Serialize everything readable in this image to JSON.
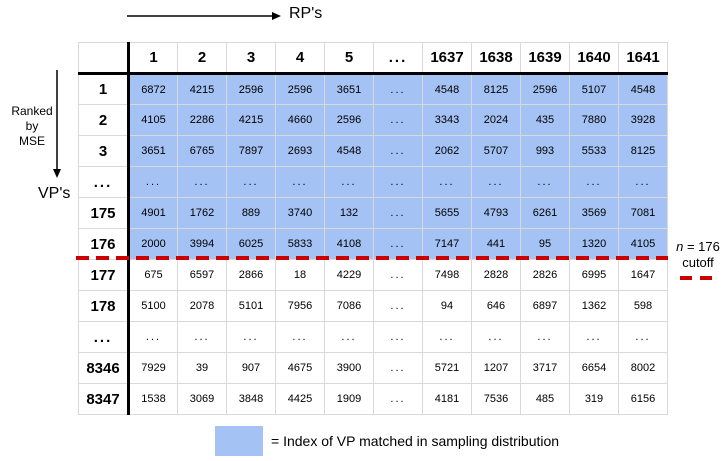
{
  "colors": {
    "highlight": "#a4c2f4",
    "cutoff_red": "#cc0000",
    "grid": "#d9d9d9",
    "thick_line": "#000000"
  },
  "top_axis": {
    "label": "RP's"
  },
  "left_axis": {
    "lines": [
      "Ranked",
      "by",
      "MSE"
    ],
    "vps_label": "VP's"
  },
  "table": {
    "col_headers": [
      "1",
      "2",
      "3",
      "4",
      "5",
      "...",
      "1637",
      "1638",
      "1639",
      "1640",
      "1641"
    ],
    "rows": [
      {
        "label": "1",
        "highlighted": true,
        "values": [
          "6872",
          "4215",
          "2596",
          "2596",
          "3651",
          "...",
          "4548",
          "8125",
          "2596",
          "5107",
          "4548"
        ]
      },
      {
        "label": "2",
        "highlighted": true,
        "values": [
          "4105",
          "2286",
          "4215",
          "4660",
          "2596",
          "...",
          "3343",
          "2024",
          "435",
          "7880",
          "3928"
        ]
      },
      {
        "label": "3",
        "highlighted": true,
        "values": [
          "3651",
          "6765",
          "7897",
          "2693",
          "4548",
          "...",
          "2062",
          "5707",
          "993",
          "5533",
          "8125"
        ]
      },
      {
        "label": "...",
        "highlighted": true,
        "values": [
          "...",
          "...",
          "...",
          "...",
          "...",
          "...",
          "...",
          "...",
          "...",
          "...",
          "..."
        ]
      },
      {
        "label": "175",
        "highlighted": true,
        "values": [
          "4901",
          "1762",
          "889",
          "3740",
          "132",
          "...",
          "5655",
          "4793",
          "6261",
          "3569",
          "7081"
        ]
      },
      {
        "label": "176",
        "highlighted": true,
        "values": [
          "2000",
          "3994",
          "6025",
          "5833",
          "4108",
          "...",
          "7147",
          "441",
          "95",
          "1320",
          "4105"
        ]
      },
      {
        "label": "177",
        "highlighted": false,
        "values": [
          "675",
          "6597",
          "2866",
          "18",
          "4229",
          "...",
          "7498",
          "2828",
          "2826",
          "6995",
          "1647"
        ]
      },
      {
        "label": "178",
        "highlighted": false,
        "values": [
          "5100",
          "2078",
          "5101",
          "7956",
          "7086",
          "...",
          "94",
          "646",
          "6897",
          "1362",
          "598"
        ]
      },
      {
        "label": "...",
        "highlighted": false,
        "values": [
          "...",
          "...",
          "...",
          "...",
          "...",
          "...",
          "...",
          "...",
          "...",
          "...",
          "..."
        ]
      },
      {
        "label": "8346",
        "highlighted": false,
        "values": [
          "7929",
          "39",
          "907",
          "4675",
          "3900",
          "...",
          "5721",
          "1207",
          "3717",
          "6654",
          "8002"
        ]
      },
      {
        "label": "8347",
        "highlighted": false,
        "values": [
          "1538",
          "3069",
          "3848",
          "4425",
          "1909",
          "...",
          "4181",
          "7536",
          "485",
          "319",
          "6156"
        ]
      }
    ]
  },
  "cutoff": {
    "n": "n",
    "rest": " = 176",
    "line2": "cutoff"
  },
  "legend": {
    "text": "= Index of VP matched in sampling distribution"
  }
}
